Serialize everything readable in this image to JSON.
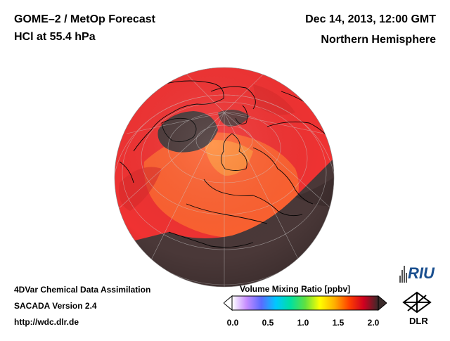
{
  "header": {
    "title_line1": "GOME–2 / MetOp Forecast",
    "title_line2": "HCl at 55.4 hPa",
    "date": "Dec 14, 2013, 12:00 GMT",
    "region": "Northern Hemisphere"
  },
  "footer": {
    "line1": "4DVar Chemical Data Assimilation",
    "line2": "SACADA Version 2.4",
    "line3": "http://wdc.dlr.de"
  },
  "colorbar": {
    "title": "Volume Mixing Ratio [ppbv]",
    "ticks": [
      "0.0",
      "0.5",
      "1.0",
      "1.5",
      "2.0"
    ],
    "range": [
      0.0,
      2.0
    ],
    "colors": [
      "#ffffff",
      "#c58cff",
      "#5a6bff",
      "#00c8ff",
      "#00e0a0",
      "#60e040",
      "#ffff00",
      "#ffb000",
      "#ff4000",
      "#d00020",
      "#3a2a2a"
    ]
  },
  "logos": {
    "riu": "RIU",
    "dlr": "DLR"
  },
  "map": {
    "colors": {
      "ocean_high": "#f03030",
      "band_low": "#4a3838",
      "mid": "#ff6a2a",
      "land_outline": "#000000"
    }
  }
}
